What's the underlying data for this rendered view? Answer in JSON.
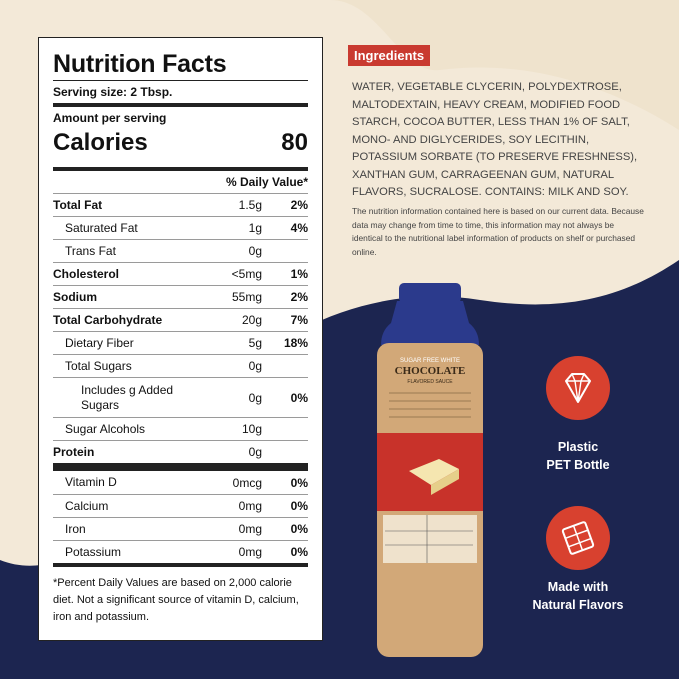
{
  "nutrition_facts": {
    "title": "Nutrition Facts",
    "serving_size": "Serving size: 2 Tbsp.",
    "amount_per_serving": "Amount per serving",
    "calories_label": "Calories",
    "calories_value": "80",
    "daily_value_header": "% Daily Value*",
    "rows": [
      {
        "name": "Total Fat",
        "amount": "1.5g",
        "dv": "2%"
      },
      {
        "name": "Saturated Fat",
        "amount": "1g",
        "dv": "4%"
      },
      {
        "name": "Trans Fat",
        "amount": "0g",
        "dv": ""
      },
      {
        "name": "Cholesterol",
        "amount": "<5mg",
        "dv": "1%"
      },
      {
        "name": "Sodium",
        "amount": "55mg",
        "dv": "2%"
      },
      {
        "name": "Total Carbohydrate",
        "amount": "20g",
        "dv": "7%"
      },
      {
        "name": "Dietary Fiber",
        "amount": "5g",
        "dv": "18%"
      },
      {
        "name": "Total Sugars",
        "amount": "0g",
        "dv": ""
      },
      {
        "name": "Includes g Added Sugars",
        "amount": "0g",
        "dv": "0%"
      },
      {
        "name": "Sugar Alcohols",
        "amount": "10g",
        "dv": ""
      },
      {
        "name": "Protein",
        "amount": "0g",
        "dv": ""
      }
    ],
    "vitamins": [
      {
        "name": "Vitamin D",
        "amount": "0mcg",
        "dv": "0%"
      },
      {
        "name": "Calcium",
        "amount": "0mg",
        "dv": "0%"
      },
      {
        "name": "Iron",
        "amount": "0mg",
        "dv": "0%"
      },
      {
        "name": "Potassium",
        "amount": "0mg",
        "dv": "0%"
      }
    ],
    "footnote": "*Percent Daily Values are based on 2,000 calorie diet. Not a significant source of vitamin D, calcium, iron and potassium."
  },
  "ingredients": {
    "heading": "Ingredients",
    "text": "WATER, VEGETABLE CLYCERIN, POLYDEXTROSE, MALTODEXTAIN, HEAVY CREAM, MODIFIED FOOD STARCH, COCOA BUTTER, LESS THAN 1% OF SALT, MONO- AND DIGLYCERIDES, SOY LECITHIN, POTASSIUM SORBATE (TO PRESERVE FRESHNESS), XANTHAN GUM, CARRAGEENAN GUM, NATURAL FLAVORS, SUCRALOSE. CONTAINS: MILK AND SOY.",
    "disclaimer": "The nutrition information contained here is based on our current data. Because data may change from time to time, this information may not always be identical to the nutritional label information of products on shelf or purchased online."
  },
  "bottle_label": {
    "line1": "SUGAR FREE WHITE",
    "line2": "CHOCOLATE",
    "line3": "FLAVORED SAUCE"
  },
  "badges": [
    {
      "icon": "diamond-icon",
      "label_line1": "Plastic",
      "label_line2": "PET Bottle"
    },
    {
      "icon": "chocolate-bar-icon",
      "label_line1": "Made with",
      "label_line2": "Natural Flavors"
    }
  ],
  "colors": {
    "navy": "#1c2550",
    "cream": "#f3e9d8",
    "red_accent": "#c93a30",
    "badge_red": "#d8412f",
    "bottle_cap": "#2b3a8c",
    "bottle_body": "#d2a878"
  }
}
